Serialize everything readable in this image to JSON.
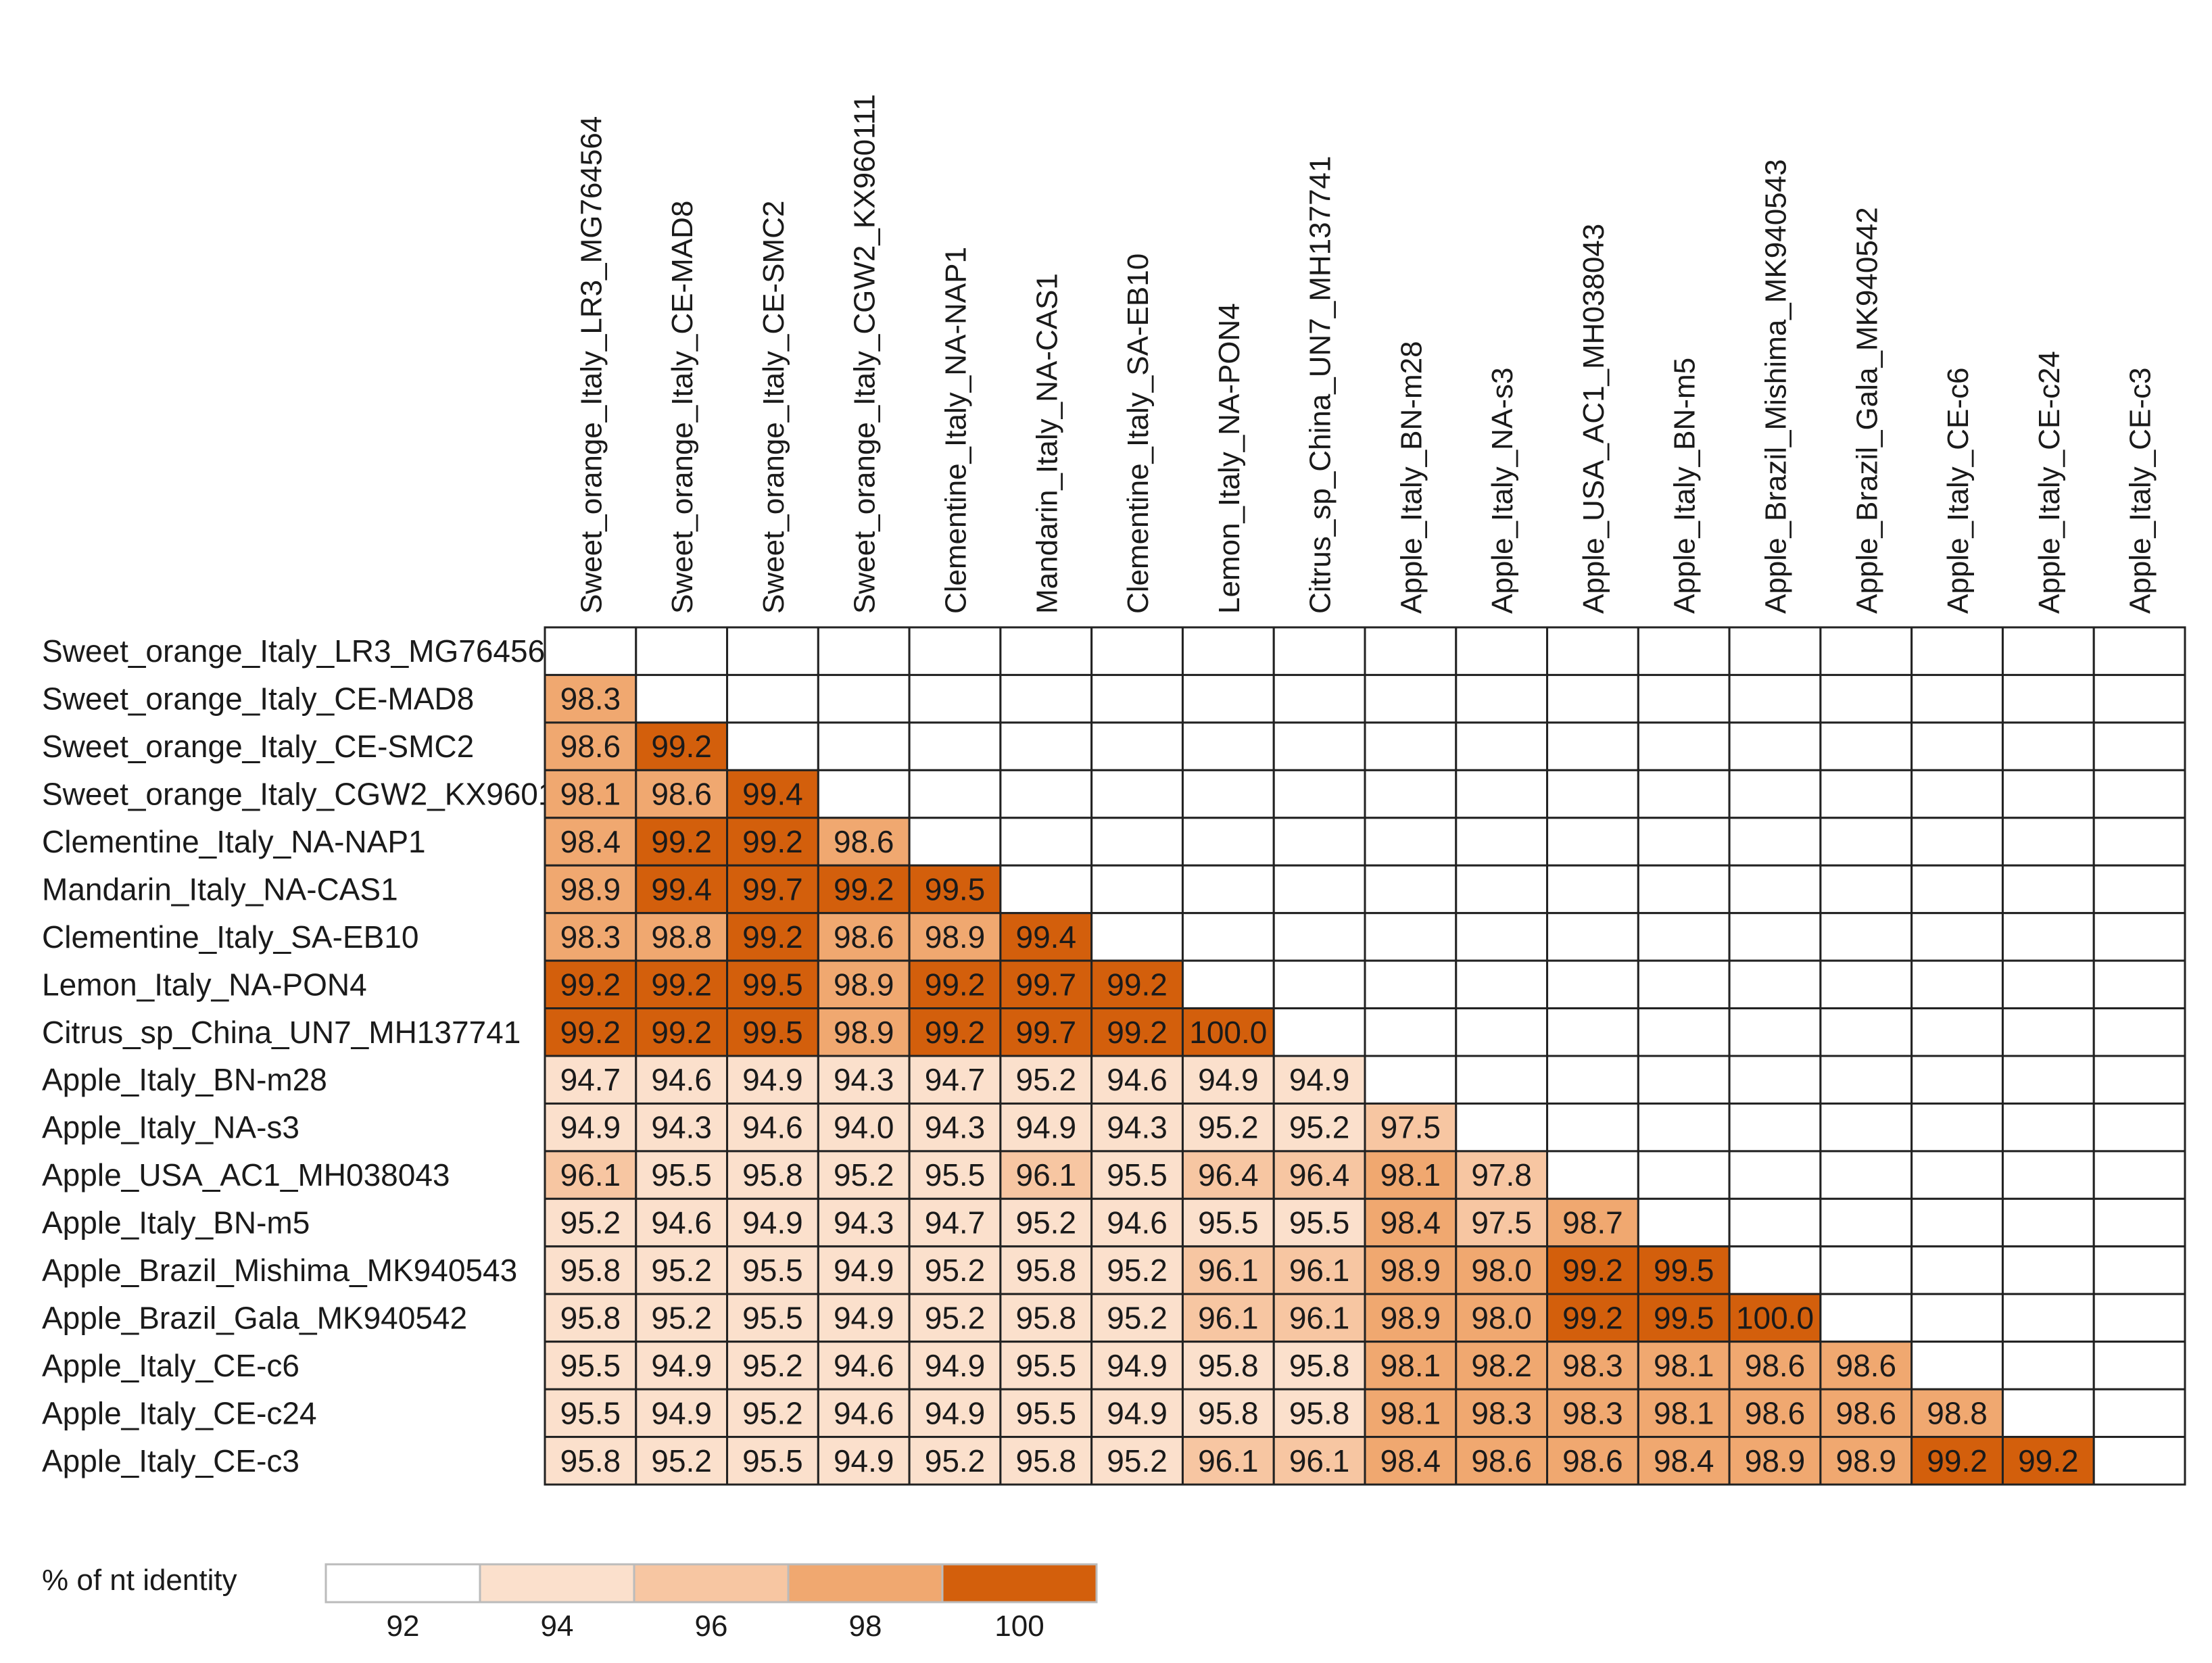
{
  "chart_data": {
    "type": "heatmap",
    "title": "",
    "matrix_kind": "lower-triangular pairwise % nt identity",
    "labels": [
      "Sweet_orange_Italy_LR3_MG764564",
      "Sweet_orange_Italy_CE-MAD8",
      "Sweet_orange_Italy_CE-SMC2",
      "Sweet_orange_Italy_CGW2_KX960111",
      "Clementine_Italy_NA-NAP1",
      "Mandarin_Italy_NA-CAS1",
      "Clementine_Italy_SA-EB10",
      "Lemon_Italy_NA-PON4",
      "Citrus_sp_China_UN7_MH137741",
      "Apple_Italy_BN-m28",
      "Apple_Italy_NA-s3",
      "Apple_USA_AC1_MH038043",
      "Apple_Italy_BN-m5",
      "Apple_Brazil_Mishima_MK940543",
      "Apple_Brazil_Gala_MK940542",
      "Apple_Italy_CE-c6",
      "Apple_Italy_CE-c24",
      "Apple_Italy_CE-c3"
    ],
    "rows": [
      [],
      [
        "98.3"
      ],
      [
        "98.6",
        "99.2"
      ],
      [
        "98.1",
        "98.6",
        "99.4"
      ],
      [
        "98.4",
        "99.2",
        "99.2",
        "98.6"
      ],
      [
        "98.9",
        "99.4",
        "99.7",
        "99.2",
        "99.5"
      ],
      [
        "98.3",
        "98.8",
        "99.2",
        "98.6",
        "98.9",
        "99.4"
      ],
      [
        "99.2",
        "99.2",
        "99.5",
        "98.9",
        "99.2",
        "99.7",
        "99.2"
      ],
      [
        "99.2",
        "99.2",
        "99.5",
        "98.9",
        "99.2",
        "99.7",
        "99.2",
        "100.0"
      ],
      [
        "94.7",
        "94.6",
        "94.9",
        "94.3",
        "94.7",
        "95.2",
        "94.6",
        "94.9",
        "94.9"
      ],
      [
        "94.9",
        "94.3",
        "94.6",
        "94.0",
        "94.3",
        "94.9",
        "94.3",
        "95.2",
        "95.2",
        "97.5"
      ],
      [
        "96.1",
        "95.5",
        "95.8",
        "95.2",
        "95.5",
        "96.1",
        "95.5",
        "96.4",
        "96.4",
        "98.1",
        "97.8"
      ],
      [
        "95.2",
        "94.6",
        "94.9",
        "94.3",
        "94.7",
        "95.2",
        "94.6",
        "95.5",
        "95.5",
        "98.4",
        "97.5",
        "98.7"
      ],
      [
        "95.8",
        "95.2",
        "95.5",
        "94.9",
        "95.2",
        "95.8",
        "95.2",
        "96.1",
        "96.1",
        "98.9",
        "98.0",
        "99.2",
        "99.5"
      ],
      [
        "95.8",
        "95.2",
        "95.5",
        "94.9",
        "95.2",
        "95.8",
        "95.2",
        "96.1",
        "96.1",
        "98.9",
        "98.0",
        "99.2",
        "99.5",
        "100.0"
      ],
      [
        "95.5",
        "94.9",
        "95.2",
        "94.6",
        "94.9",
        "95.5",
        "94.9",
        "95.8",
        "95.8",
        "98.1",
        "98.2",
        "98.3",
        "98.1",
        "98.6",
        "98.6"
      ],
      [
        "95.5",
        "94.9",
        "95.2",
        "94.6",
        "94.9",
        "95.5",
        "94.9",
        "95.8",
        "95.8",
        "98.1",
        "98.3",
        "98.3",
        "98.1",
        "98.6",
        "98.6",
        "98.8"
      ],
      [
        "95.8",
        "95.2",
        "95.5",
        "94.9",
        "95.2",
        "95.8",
        "95.2",
        "96.1",
        "96.1",
        "98.4",
        "98.6",
        "98.6",
        "98.4",
        "98.9",
        "98.9",
        "99.2",
        "99.2"
      ]
    ],
    "legend": {
      "title": "% of nt identity",
      "ticks": [
        "92",
        "94",
        "96",
        "98",
        "100"
      ],
      "colors": [
        "#ffffff",
        "#fbe0cc",
        "#f7c6a2",
        "#f0a870",
        "#d35f0c"
      ]
    }
  }
}
